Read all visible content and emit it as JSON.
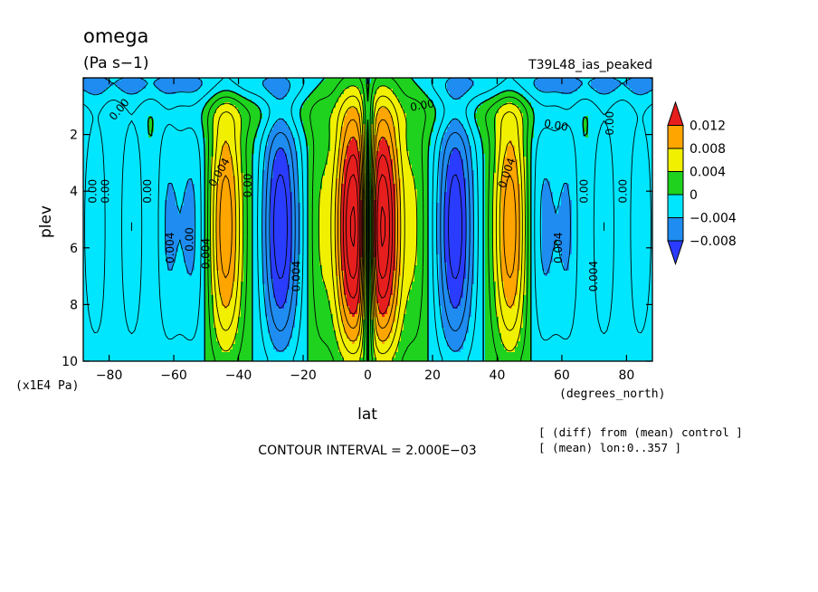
{
  "chart_data": {
    "type": "heatmap",
    "title": "omega",
    "units": "(Pa s−1)",
    "run_name": "T39L48_ias_peaked",
    "xlabel": "lat",
    "x_units": "(degrees_north)",
    "ylabel": "plev",
    "y_units": "(x1E4 Pa)",
    "xlim": [
      -88,
      88
    ],
    "ylim": [
      10,
      0
    ],
    "x_ticks": [
      {
        "value": -80,
        "label": "−80"
      },
      {
        "value": -60,
        "label": "−60"
      },
      {
        "value": -40,
        "label": "−40"
      },
      {
        "value": -20,
        "label": "−20"
      },
      {
        "value": 0,
        "label": "0"
      },
      {
        "value": 20,
        "label": "20"
      },
      {
        "value": 40,
        "label": "40"
      },
      {
        "value": 60,
        "label": "60"
      },
      {
        "value": 80,
        "label": "80"
      }
    ],
    "y_ticks": [
      {
        "value": 2,
        "label": "2"
      },
      {
        "value": 4,
        "label": "4"
      },
      {
        "value": 6,
        "label": "6"
      },
      {
        "value": 8,
        "label": "8"
      },
      {
        "value": 10,
        "label": "10"
      }
    ],
    "contour_interval_label": "CONTOUR INTERVAL = 2.000E−03",
    "notes": [
      "[ (diff) from (mean) control ]",
      "[ (mean) lon:0..357 ]"
    ],
    "colorbar": {
      "levels": [
        {
          "value": 0.012,
          "label": "0.012"
        },
        {
          "value": 0.008,
          "label": "0.008"
        },
        {
          "value": 0.004,
          "label": "0.004"
        },
        {
          "value": 0,
          "label": "0"
        },
        {
          "value": -0.004,
          "label": "−0.004"
        },
        {
          "value": -0.008,
          "label": "−0.008"
        }
      ],
      "colors": [
        "#2a3cff",
        "#1e8cf0",
        "#00e6ff",
        "#1ed21e",
        "#f0f000",
        "#ffa500",
        "#e61e1e"
      ]
    },
    "contour_labels": [
      {
        "text": "0.00",
        "lat": -76,
        "plev": 1.2,
        "rot": -50
      },
      {
        "text": "0.00",
        "lat": -84,
        "plev": 4.0,
        "rot": -90
      },
      {
        "text": "0.00",
        "lat": -80,
        "plev": 4.0,
        "rot": -90
      },
      {
        "text": "0.00",
        "lat": -67,
        "plev": 4.0,
        "rot": -90
      },
      {
        "text": "0.004",
        "lat": -60,
        "plev": 6.0,
        "rot": -90
      },
      {
        "text": "0.00",
        "lat": -54,
        "plev": 5.7,
        "rot": -90
      },
      {
        "text": "0.004",
        "lat": -49,
        "plev": 6.2,
        "rot": -90
      },
      {
        "text": "0.004",
        "lat": -45,
        "plev": 3.4,
        "rot": -60
      },
      {
        "text": "0.00",
        "lat": -36,
        "plev": 3.8,
        "rot": -90
      },
      {
        "text": "0.004",
        "lat": -21,
        "plev": 7.0,
        "rot": -90
      },
      {
        "text": "0.00",
        "lat": 17,
        "plev": 1.1,
        "rot": -10
      },
      {
        "text": "0.00",
        "lat": 58,
        "plev": 1.8,
        "rot": 10
      },
      {
        "text": "0.004",
        "lat": 44,
        "plev": 3.4,
        "rot": -70
      },
      {
        "text": "0.00",
        "lat": 76,
        "plev": 1.6,
        "rot": -90
      },
      {
        "text": "0.004",
        "lat": 60,
        "plev": 6.0,
        "rot": -90
      },
      {
        "text": "0.00",
        "lat": 68,
        "plev": 4.0,
        "rot": -90
      },
      {
        "text": "0.00",
        "lat": 80,
        "plev": 4.0,
        "rot": -90
      },
      {
        "text": "0.004",
        "lat": 71,
        "plev": 7.0,
        "rot": -90
      }
    ]
  }
}
